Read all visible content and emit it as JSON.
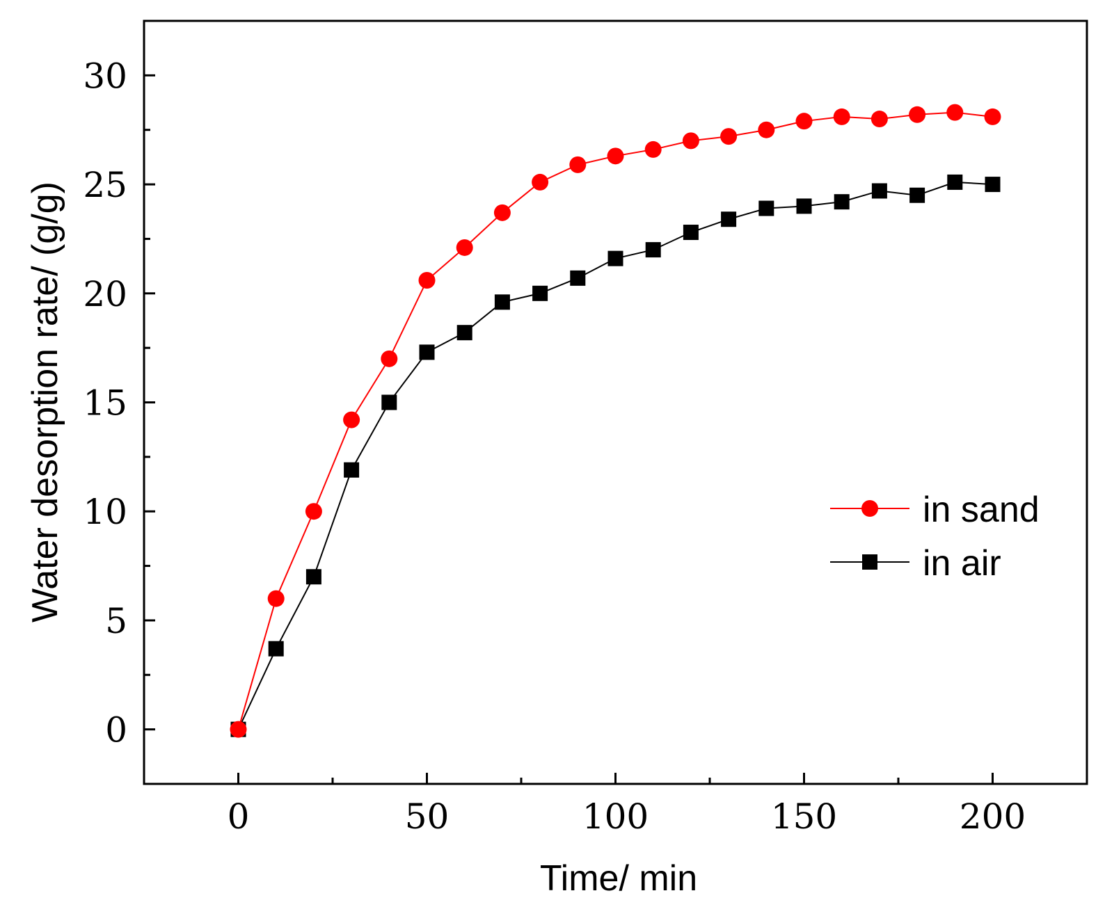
{
  "chart_data": {
    "type": "line",
    "title": "",
    "xlabel": "Time/ min",
    "ylabel": "Water desorption rate/ (g/g)",
    "xlim": [
      -25,
      225
    ],
    "ylim": [
      -2.5,
      32.5
    ],
    "xticks": [
      0,
      50,
      100,
      150,
      200
    ],
    "xtick_labels": [
      "0",
      "50",
      "100",
      "150",
      "200"
    ],
    "yticks": [
      0,
      5,
      10,
      15,
      20,
      25,
      30
    ],
    "ytick_labels": [
      "0",
      "5",
      "10",
      "15",
      "20",
      "25",
      "30"
    ],
    "grid": false,
    "legend_position": "center-right",
    "x": [
      0,
      10,
      20,
      30,
      40,
      50,
      60,
      70,
      80,
      90,
      100,
      110,
      120,
      130,
      140,
      150,
      160,
      170,
      180,
      190,
      200
    ],
    "series": [
      {
        "name": "in sand",
        "color": "#ff0000",
        "marker": "circle",
        "values": [
          0,
          6.0,
          10.0,
          14.2,
          17.0,
          20.6,
          22.1,
          23.7,
          25.1,
          25.9,
          26.3,
          26.6,
          27.0,
          27.2,
          27.5,
          27.9,
          28.1,
          28.0,
          28.2,
          28.3,
          28.1
        ]
      },
      {
        "name": "in air",
        "color": "#000000",
        "marker": "square",
        "values": [
          0,
          3.7,
          7.0,
          11.9,
          15.0,
          17.3,
          18.2,
          19.6,
          20.0,
          20.7,
          21.6,
          22.0,
          22.8,
          23.4,
          23.9,
          24.0,
          24.2,
          24.7,
          24.5,
          25.1,
          25.0
        ]
      }
    ]
  }
}
